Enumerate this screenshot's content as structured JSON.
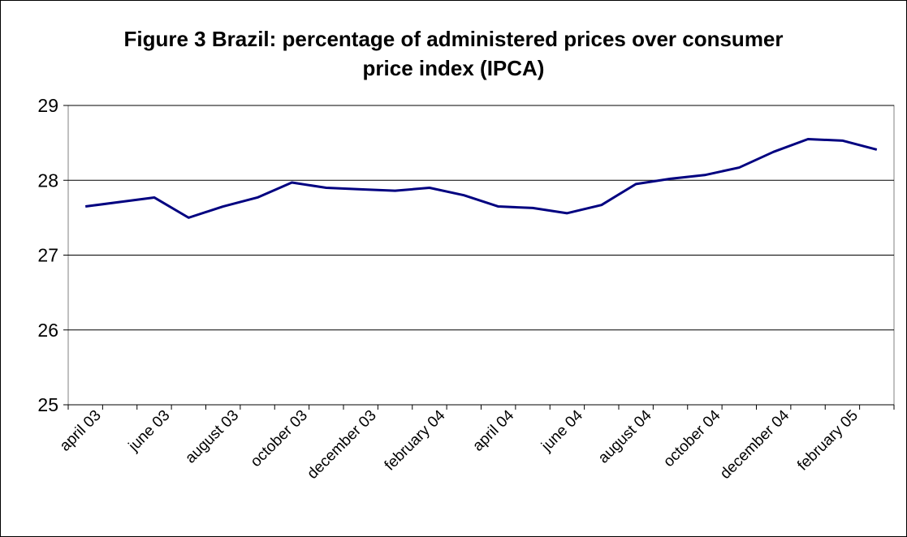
{
  "chart_data": {
    "type": "line",
    "title": "Figure 3 Brazil: percentage of administered prices over consumer price index (IPCA)",
    "categories": [
      "april 03",
      null,
      "june 03",
      null,
      "august 03",
      null,
      "october 03",
      null,
      "december 03",
      null,
      "february 04",
      null,
      "april 04",
      null,
      "june 04",
      null,
      "august 04",
      null,
      "october 04",
      null,
      "december 04",
      null,
      "february 05",
      null
    ],
    "values": [
      27.65,
      27.71,
      27.77,
      27.5,
      27.65,
      27.77,
      27.97,
      27.9,
      27.88,
      27.86,
      27.9,
      27.8,
      27.65,
      27.63,
      27.56,
      27.67,
      27.95,
      28.02,
      28.07,
      28.17,
      28.38,
      28.55,
      28.53,
      28.41
    ],
    "color": "#000080",
    "ylim": [
      25,
      29
    ],
    "yticks": [
      25,
      26,
      27,
      28,
      29
    ],
    "grid": true
  }
}
